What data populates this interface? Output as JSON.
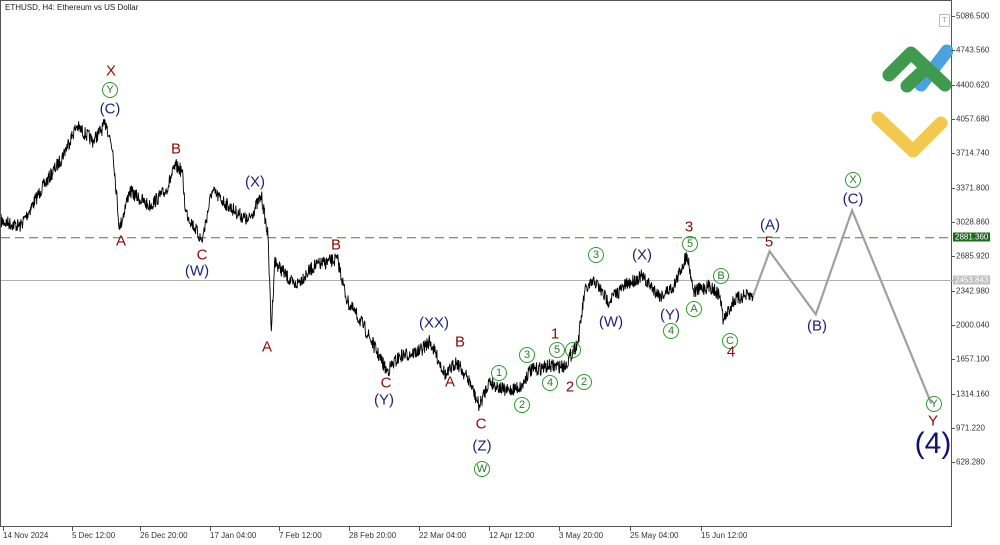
{
  "header": {
    "title": "ETHUSD, H4:  Ethereum vs US Dollar"
  },
  "colors": {
    "price": "#000000",
    "forecast": "#a0a0a0",
    "resistance": "#2e8b2e",
    "current": "#b0b0b0",
    "wave_red": "#8b0a0a",
    "wave_navy": "#1f1f7a",
    "wave_circle": "#2a9a2a"
  },
  "icons": {
    "logo": "brand-logo-icon",
    "toolbar_t": "t-box-icon"
  },
  "toolbar_t": "T",
  "chart_data": {
    "type": "line",
    "title": "ETHUSD, H4:  Ethereum vs US Dollar",
    "xlabel": "",
    "ylabel": "",
    "ylim": [
      456.81,
      5258
    ],
    "grid": false,
    "y_ticks": [
      "5086.500",
      "4743.560",
      "4400.620",
      "4057.680",
      "3714.740",
      "3371.800",
      "3028.860",
      "2685.920",
      "2342.980",
      "2000.040",
      "1657.100",
      "1314.160",
      "971.220",
      "628.280"
    ],
    "x_ticks": [
      "14 Nov 2024",
      "5 Dec 12:00",
      "26 Dec 20:00",
      "17 Jan 04:00",
      "7 Feb 12:00",
      "28 Feb 20:00",
      "22 Mar 04:00",
      "12 Apr 12:00",
      "3 May 20:00",
      "25 May 04:00",
      "15 Jun 12:00"
    ],
    "resistance_level": {
      "price": 2881.36,
      "label": "2881.360"
    },
    "current_price": {
      "price": 2453.843,
      "label": "2453.843"
    },
    "price_path": [
      [
        "2024-11-13",
        3048
      ],
      [
        "2024-11-19",
        2998
      ],
      [
        "2024-11-25",
        3348
      ],
      [
        "2024-12-01",
        3648
      ],
      [
        "2024-12-06",
        3997
      ],
      [
        "2024-12-11",
        3847
      ],
      [
        "2024-12-15",
        4027
      ],
      [
        "2024-12-17",
        3747
      ],
      [
        "2024-12-19",
        2968
      ],
      [
        "2024-12-22",
        3348
      ],
      [
        "2024-12-28",
        3198
      ],
      [
        "2025-01-02",
        3348
      ],
      [
        "2025-01-05",
        3598
      ],
      [
        "2025-01-07",
        3548
      ],
      [
        "2025-01-08",
        3148
      ],
      [
        "2025-01-13",
        2848
      ],
      [
        "2025-01-16",
        3348
      ],
      [
        "2025-01-21",
        3198
      ],
      [
        "2025-01-27",
        3048
      ],
      [
        "2025-01-31",
        3298
      ],
      [
        "2025-02-02",
        2898
      ],
      [
        "2025-02-03",
        1948
      ],
      [
        "2025-02-04",
        2648
      ],
      [
        "2025-02-10",
        2398
      ],
      [
        "2025-02-16",
        2598
      ],
      [
        "2025-02-23",
        2668
      ],
      [
        "2025-02-26",
        2248
      ],
      [
        "2025-03-03",
        1998
      ],
      [
        "2025-03-10",
        1548
      ],
      [
        "2025-03-14",
        1698
      ],
      [
        "2025-03-20",
        1748
      ],
      [
        "2025-03-23",
        1848
      ],
      [
        "2025-03-28",
        1498
      ],
      [
        "2025-03-31",
        1648
      ],
      [
        "2025-04-04",
        1448
      ],
      [
        "2025-04-07",
        1198
      ],
      [
        "2025-04-10",
        1448
      ],
      [
        "2025-04-15",
        1348
      ],
      [
        "2025-04-20",
        1398
      ],
      [
        "2025-04-22",
        1548
      ],
      [
        "2025-04-28",
        1598
      ],
      [
        "2025-05-03",
        1598
      ],
      [
        "2025-05-07",
        1848
      ],
      [
        "2025-05-09",
        2348
      ],
      [
        "2025-05-12",
        2448
      ],
      [
        "2025-05-16",
        2248
      ],
      [
        "2025-05-21",
        2398
      ],
      [
        "2025-05-26",
        2498
      ],
      [
        "2025-06-01",
        2298
      ],
      [
        "2025-06-05",
        2398
      ],
      [
        "2025-06-09",
        2718
      ],
      [
        "2025-06-11",
        2348
      ],
      [
        "2025-06-16",
        2398
      ],
      [
        "2025-06-19",
        2298
      ],
      [
        "2025-06-20",
        2048
      ],
      [
        "2025-06-23",
        2248
      ],
      [
        "2025-06-26",
        2298
      ],
      [
        "2025-06-29",
        2298
      ]
    ],
    "forecast_path": [
      [
        "2025-06-29",
        2298
      ],
      [
        "2025-07-04",
        2746
      ],
      [
        "2025-07-18",
        2116
      ],
      [
        "2025-07-29",
        3156
      ],
      [
        "2025-08-22",
        1226
      ]
    ],
    "wave_labels": [
      "X",
      "Y",
      "(C)",
      "A",
      "B",
      "C",
      "(W)",
      "(X)",
      "A",
      "B",
      "C",
      "(Y)",
      "(XX)",
      "B",
      "A",
      "C",
      "(Z)",
      "W",
      "1",
      "2",
      "3",
      "4",
      "5",
      "1",
      "1",
      "2",
      "2",
      "3",
      "(W)",
      "(X)",
      "3",
      "5",
      "(Y)",
      "4",
      "A",
      "B",
      "C",
      "4",
      "(A)",
      "5",
      "(B)",
      "X",
      "(C)",
      "Y",
      "Y",
      "(4)"
    ]
  }
}
